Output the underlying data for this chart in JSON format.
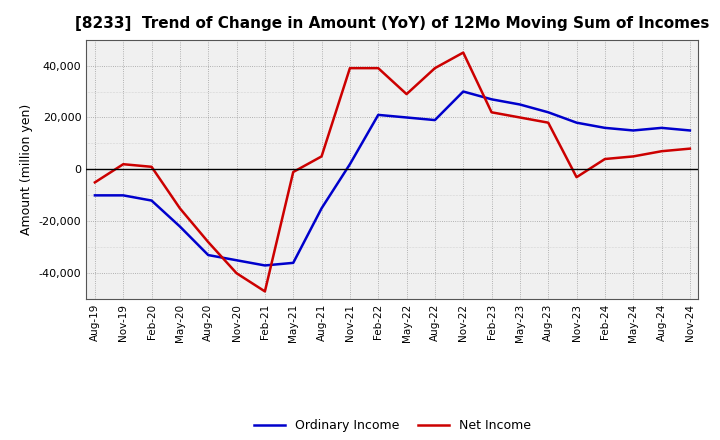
{
  "title": "[8233]  Trend of Change in Amount (YoY) of 12Mo Moving Sum of Incomes",
  "ylabel": "Amount (million yen)",
  "x_labels": [
    "Aug-19",
    "Nov-19",
    "Feb-20",
    "May-20",
    "Aug-20",
    "Nov-20",
    "Feb-21",
    "May-21",
    "Aug-21",
    "Nov-21",
    "Feb-22",
    "May-22",
    "Aug-22",
    "Nov-22",
    "Feb-23",
    "May-23",
    "Aug-23",
    "Nov-23",
    "Feb-24",
    "May-24",
    "Aug-24",
    "Nov-24"
  ],
  "ordinary_income": [
    -10000,
    -10000,
    -12000,
    -22000,
    -33000,
    -35000,
    -37000,
    -36000,
    -15000,
    2000,
    21000,
    20000,
    19000,
    30000,
    27000,
    25000,
    22000,
    18000,
    16000,
    15000,
    16000,
    15000
  ],
  "net_income": [
    -5000,
    2000,
    1000,
    -15000,
    -28000,
    -40000,
    -47000,
    -1000,
    5000,
    39000,
    39000,
    29000,
    39000,
    45000,
    22000,
    20000,
    18000,
    -3000,
    4000,
    5000,
    7000,
    8000
  ],
  "ordinary_color": "#0000cc",
  "net_color": "#cc0000",
  "ylim": [
    -50000,
    50000
  ],
  "yticks": [
    -40000,
    -20000,
    0,
    20000,
    40000
  ],
  "background_color": "#ffffff",
  "plot_bg_color": "#f0f0f0",
  "grid_color": "#888888"
}
